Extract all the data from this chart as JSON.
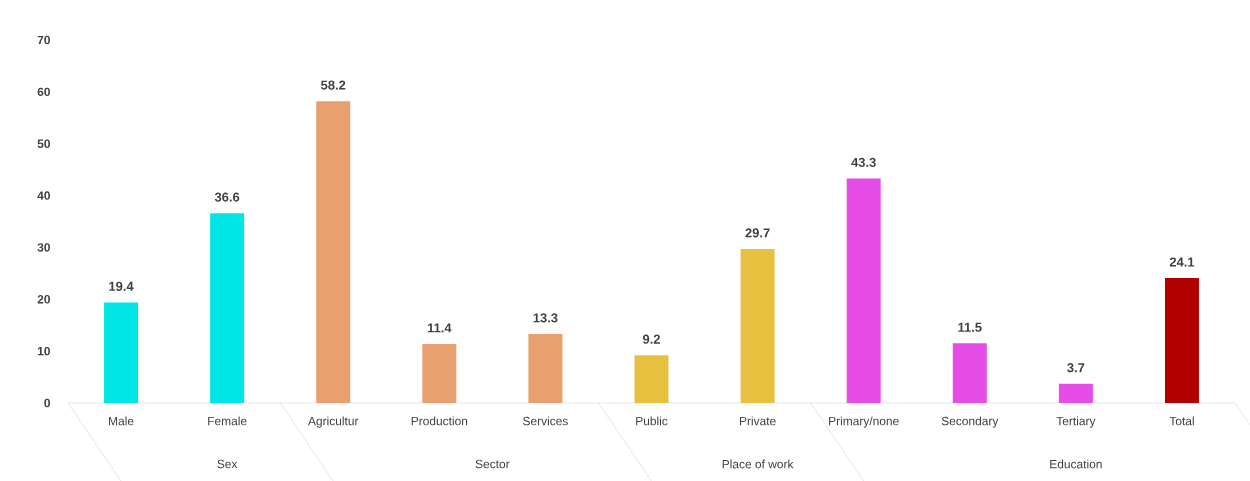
{
  "chart_data": {
    "type": "bar",
    "categories": [
      "Male",
      "Female",
      "Agricultur",
      "Production",
      "Services",
      "Public",
      "Private",
      "Primary/none",
      "Secondary",
      "Tertiary",
      "Total"
    ],
    "values": [
      19.4,
      36.6,
      58.2,
      11.4,
      13.3,
      9.2,
      29.7,
      43.3,
      11.5,
      3.7,
      24.1
    ],
    "colors": [
      "#00e5e5",
      "#00e5e5",
      "#e8a070",
      "#e8a070",
      "#e8a070",
      "#e8c040",
      "#e8c040",
      "#e64ce6",
      "#e64ce6",
      "#e64ce6",
      "#b00000"
    ],
    "data_labels": true,
    "ylim": [
      0,
      70
    ],
    "yticks": [
      0,
      10,
      20,
      30,
      40,
      50,
      60,
      70
    ],
    "grid": false,
    "annotations": [
      "Sex",
      "Sector",
      "Place of work",
      "Education"
    ]
  }
}
